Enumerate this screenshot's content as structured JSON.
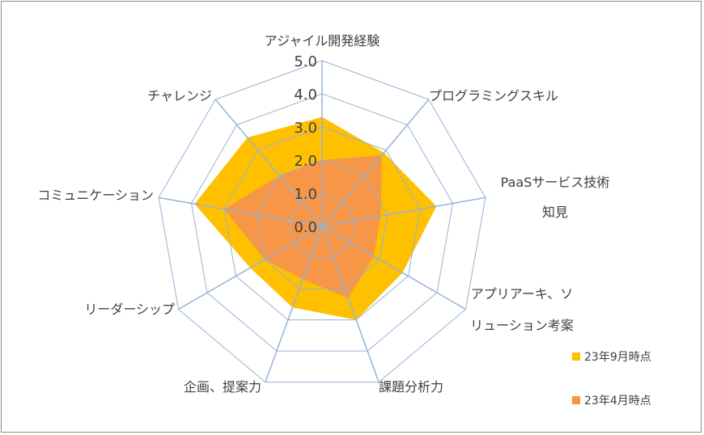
{
  "chart_data": {
    "type": "radar",
    "categories": [
      [
        "アジャイル開発経験"
      ],
      [
        "プログラミングスキル"
      ],
      [
        "PaaSサービス技術",
        "知見"
      ],
      [
        "アプリアーキ、ソ",
        "リューション考案"
      ],
      [
        "課題分析力"
      ],
      [
        "企画、提案力"
      ],
      [
        "リーダーシップ"
      ],
      [
        "コミュニケーション"
      ],
      [
        "チャレンジ"
      ]
    ],
    "ticks": [
      "0.0",
      "1.0",
      "2.0",
      "3.0",
      "4.0",
      "5.0"
    ],
    "rlim": [
      0,
      5
    ],
    "grid": true,
    "legend": "bottom-right",
    "series": [
      {
        "name": "23年9月時点",
        "color": "#ffc000",
        "values": [
          3.3,
          2.9,
          3.5,
          2.8,
          3.0,
          2.6,
          2.5,
          3.9,
          3.5
        ]
      },
      {
        "name": "23年4月時点",
        "color": "#f79646",
        "values": [
          2.0,
          2.8,
          1.8,
          1.8,
          2.3,
          1.7,
          2.0,
          3.0,
          2.0
        ]
      }
    ],
    "colors": {
      "grid": "#95b3d7",
      "text": "#404040",
      "border": "#8c8c8c"
    }
  }
}
